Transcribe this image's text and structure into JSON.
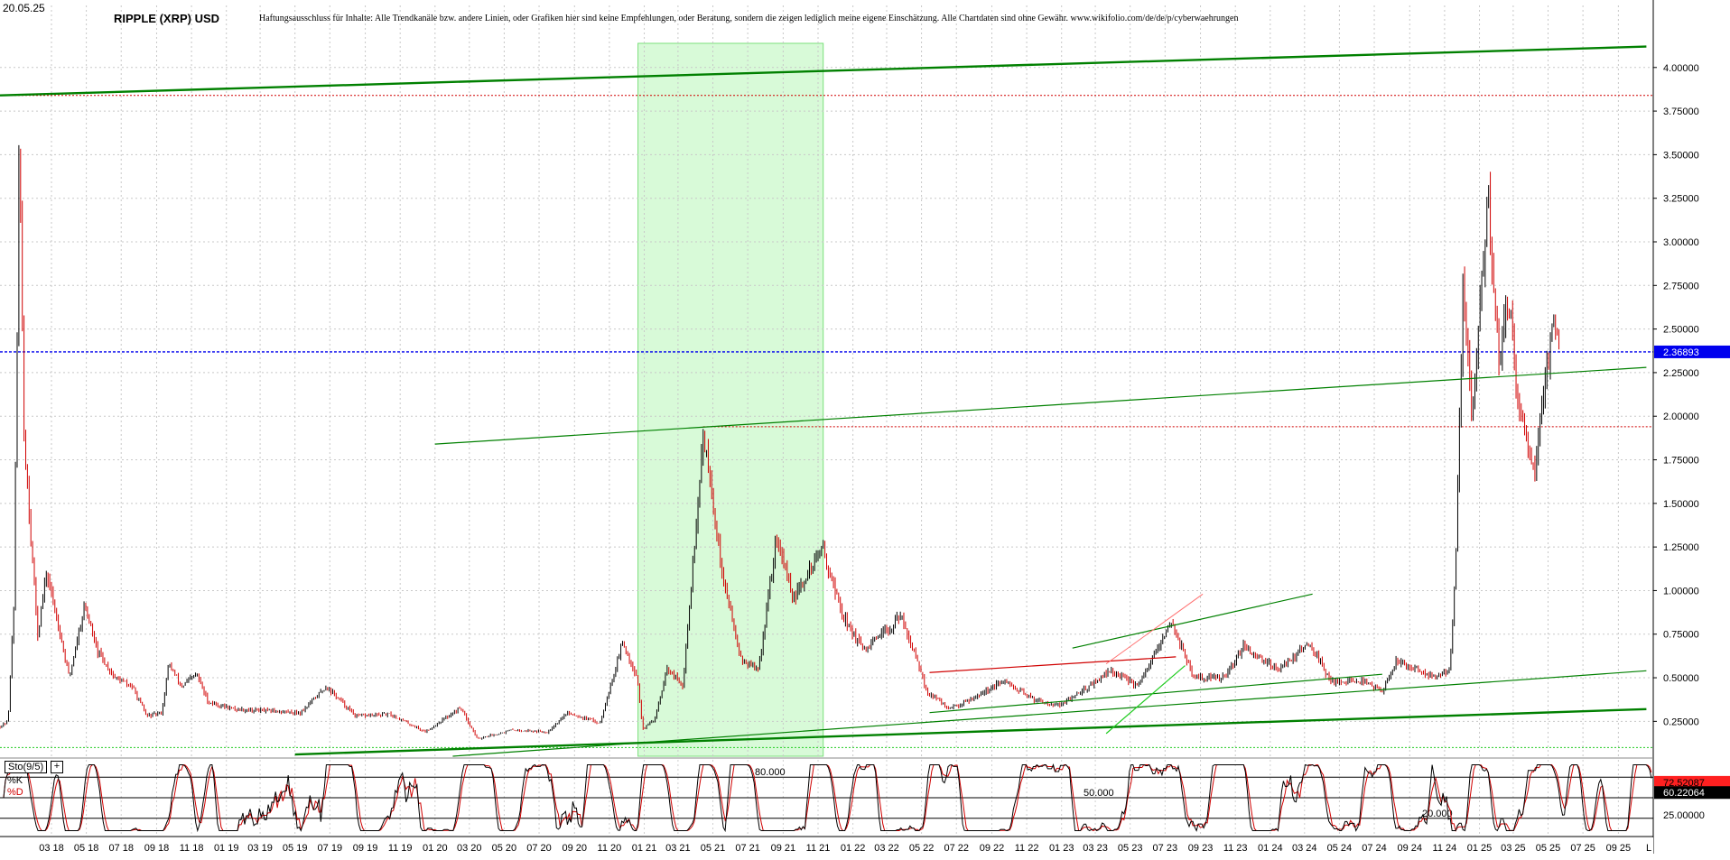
{
  "header": {
    "date": "20.05.25",
    "title": "RIPPLE (XRP) USD",
    "disclaimer": "Haftungsausschluss für Inhalte: Alle Trendkanäle bzw. andere Linien, oder Grafiken hier sind keine Empfehlungen, oder Beratung, sondern die zeigen lediglich meine eigene Einschätzung. Alle Chartdaten sind ohne Gewähr. www.wikifolio.com/de/de/p/cyberwaehrungen"
  },
  "colors": {
    "candle_up": "#000000",
    "candle_down": "#d00000",
    "trend_green": "#008000",
    "bright_green": "#22cc22",
    "highlight_zone": "#b8f5b8",
    "resistance_red": "#d00000",
    "current_price": "#0000ee",
    "stoch_k": "#000000",
    "stoch_d": "#d00000"
  },
  "chart_data": [
    {
      "type": "line",
      "subtype": "candlestick-price",
      "title": "RIPPLE (XRP) USD",
      "y_axis": {
        "side": "right",
        "range": [
          0.05,
          4.18
        ],
        "ticks": [
          "0.25000",
          "0.50000",
          "0.75000",
          "1.00000",
          "1.25000",
          "1.50000",
          "1.75000",
          "2.00000",
          "2.25000",
          "2.50000",
          "2.75000",
          "3.00000",
          "3.25000",
          "3.50000",
          "3.75000",
          "4.00000"
        ],
        "tick_values": [
          0.25,
          0.5,
          0.75,
          1.0,
          1.25,
          1.5,
          1.75,
          2.0,
          2.25,
          2.5,
          2.75,
          3.0,
          3.25,
          3.5,
          3.75,
          4.0
        ]
      },
      "x_axis": {
        "start": "2017-12",
        "end": "2025-11",
        "ticks": [
          "03 18",
          "05 18",
          "07 18",
          "09 18",
          "11 18",
          "01 19",
          "03 19",
          "05 19",
          "07 19",
          "09 19",
          "11 19",
          "01 20",
          "03 20",
          "05 20",
          "07 20",
          "09 20",
          "11 20",
          "01 21",
          "03 21",
          "05 21",
          "07 21",
          "09 21",
          "11 21",
          "01 22",
          "03 22",
          "05 22",
          "07 22",
          "09 22",
          "11 22",
          "01 23",
          "03 23",
          "05 23",
          "07 23",
          "09 23",
          "11 23",
          "01 24",
          "03 24",
          "05 24",
          "07 24",
          "09 24",
          "11 24",
          "01 25",
          "03 25",
          "05 25",
          "07 25",
          "09 25"
        ],
        "tick_dates": [
          "2018-03",
          "2018-05",
          "2018-07",
          "2018-09",
          "2018-11",
          "2019-01",
          "2019-03",
          "2019-05",
          "2019-07",
          "2019-09",
          "2019-11",
          "2020-01",
          "2020-03",
          "2020-05",
          "2020-07",
          "2020-09",
          "2020-11",
          "2021-01",
          "2021-03",
          "2021-05",
          "2021-07",
          "2021-09",
          "2021-11",
          "2022-01",
          "2022-03",
          "2022-05",
          "2022-07",
          "2022-09",
          "2022-11",
          "2023-01",
          "2023-03",
          "2023-05",
          "2023-07",
          "2023-09",
          "2023-11",
          "2024-01",
          "2024-03",
          "2024-05",
          "2024-07",
          "2024-09",
          "2024-11",
          "2025-01",
          "2025-03",
          "2025-05",
          "2025-07",
          "2025-09"
        ],
        "end_marker": "L"
      },
      "grid": true,
      "price_points": [
        {
          "date": "2017-12-01",
          "value": 0.22
        },
        {
          "date": "2017-12-15",
          "value": 0.25
        },
        {
          "date": "2017-12-25",
          "value": 0.9
        },
        {
          "date": "2018-01-04",
          "value": 3.6
        },
        {
          "date": "2018-01-12",
          "value": 1.9
        },
        {
          "date": "2018-01-22",
          "value": 1.4
        },
        {
          "date": "2018-02-05",
          "value": 0.75
        },
        {
          "date": "2018-02-20",
          "value": 1.1
        },
        {
          "date": "2018-03-10",
          "value": 0.85
        },
        {
          "date": "2018-04-01",
          "value": 0.5
        },
        {
          "date": "2018-04-28",
          "value": 0.92
        },
        {
          "date": "2018-05-20",
          "value": 0.65
        },
        {
          "date": "2018-06-20",
          "value": 0.5
        },
        {
          "date": "2018-07-20",
          "value": 0.45
        },
        {
          "date": "2018-08-15",
          "value": 0.28
        },
        {
          "date": "2018-09-10",
          "value": 0.3
        },
        {
          "date": "2018-09-22",
          "value": 0.58
        },
        {
          "date": "2018-10-15",
          "value": 0.45
        },
        {
          "date": "2018-11-10",
          "value": 0.52
        },
        {
          "date": "2018-11-30",
          "value": 0.36
        },
        {
          "date": "2019-01-15",
          "value": 0.32
        },
        {
          "date": "2019-03-15",
          "value": 0.31
        },
        {
          "date": "2019-05-10",
          "value": 0.3
        },
        {
          "date": "2019-06-25",
          "value": 0.45
        },
        {
          "date": "2019-08-15",
          "value": 0.28
        },
        {
          "date": "2019-10-15",
          "value": 0.29
        },
        {
          "date": "2019-12-15",
          "value": 0.19
        },
        {
          "date": "2020-02-15",
          "value": 0.33
        },
        {
          "date": "2020-03-15",
          "value": 0.15
        },
        {
          "date": "2020-05-15",
          "value": 0.2
        },
        {
          "date": "2020-07-15",
          "value": 0.19
        },
        {
          "date": "2020-08-20",
          "value": 0.3
        },
        {
          "date": "2020-10-15",
          "value": 0.24
        },
        {
          "date": "2020-11-24",
          "value": 0.7
        },
        {
          "date": "2020-12-20",
          "value": 0.5
        },
        {
          "date": "2020-12-29",
          "value": 0.2
        },
        {
          "date": "2021-01-20",
          "value": 0.27
        },
        {
          "date": "2021-02-10",
          "value": 0.55
        },
        {
          "date": "2021-03-10",
          "value": 0.45
        },
        {
          "date": "2021-04-14",
          "value": 1.9
        },
        {
          "date": "2021-05-01",
          "value": 1.5
        },
        {
          "date": "2021-05-20",
          "value": 1.05
        },
        {
          "date": "2021-06-20",
          "value": 0.6
        },
        {
          "date": "2021-07-20",
          "value": 0.55
        },
        {
          "date": "2021-08-20",
          "value": 1.3
        },
        {
          "date": "2021-09-20",
          "value": 0.95
        },
        {
          "date": "2021-11-08",
          "value": 1.25
        },
        {
          "date": "2021-12-15",
          "value": 0.85
        },
        {
          "date": "2022-01-20",
          "value": 0.65
        },
        {
          "date": "2022-03-28",
          "value": 0.85
        },
        {
          "date": "2022-05-10",
          "value": 0.42
        },
        {
          "date": "2022-06-20",
          "value": 0.32
        },
        {
          "date": "2022-09-23",
          "value": 0.48
        },
        {
          "date": "2022-11-10",
          "value": 0.38
        },
        {
          "date": "2022-12-30",
          "value": 0.34
        },
        {
          "date": "2023-03-28",
          "value": 0.54
        },
        {
          "date": "2023-05-15",
          "value": 0.45
        },
        {
          "date": "2023-07-13",
          "value": 0.82
        },
        {
          "date": "2023-08-20",
          "value": 0.5
        },
        {
          "date": "2023-10-15",
          "value": 0.5
        },
        {
          "date": "2023-11-15",
          "value": 0.68
        },
        {
          "date": "2024-01-15",
          "value": 0.55
        },
        {
          "date": "2024-03-11",
          "value": 0.7
        },
        {
          "date": "2024-04-15",
          "value": 0.48
        },
        {
          "date": "2024-06-15",
          "value": 0.48
        },
        {
          "date": "2024-07-15",
          "value": 0.42
        },
        {
          "date": "2024-08-10",
          "value": 0.6
        },
        {
          "date": "2024-10-15",
          "value": 0.5
        },
        {
          "date": "2024-11-10",
          "value": 0.55
        },
        {
          "date": "2024-11-20",
          "value": 1.1
        },
        {
          "date": "2024-12-03",
          "value": 2.7
        },
        {
          "date": "2024-12-20",
          "value": 2.0
        },
        {
          "date": "2025-01-16",
          "value": 3.3
        },
        {
          "date": "2025-02-03",
          "value": 2.3
        },
        {
          "date": "2025-02-20",
          "value": 2.7
        },
        {
          "date": "2025-03-10",
          "value": 2.0
        },
        {
          "date": "2025-04-07",
          "value": 1.7
        },
        {
          "date": "2025-04-25",
          "value": 2.2
        },
        {
          "date": "2025-05-12",
          "value": 2.6
        },
        {
          "date": "2025-05-20",
          "value": 2.37
        }
      ],
      "current_price_label": "2.36893",
      "current_price": 2.36893,
      "green_zone": {
        "from": "2020-12-21",
        "to": "2021-11-10"
      },
      "trendlines": [
        {
          "style": "thick-green",
          "from": {
            "date": "2017-12-01",
            "value": 3.84
          },
          "to": {
            "date": "2025-10-20",
            "value": 4.12
          }
        },
        {
          "style": "thick-green",
          "from": {
            "date": "2019-05-01",
            "value": 0.06
          },
          "to": {
            "date": "2025-10-20",
            "value": 0.32
          }
        },
        {
          "style": "green",
          "from": {
            "date": "2020-01-01",
            "value": 1.84
          },
          "to": {
            "date": "2025-10-20",
            "value": 2.28
          }
        },
        {
          "style": "green",
          "from": {
            "date": "2020-02-01",
            "value": 0.05
          },
          "to": {
            "date": "2025-10-20",
            "value": 0.54
          }
        },
        {
          "style": "green",
          "from": {
            "date": "2022-05-15",
            "value": 0.3
          },
          "to": {
            "date": "2024-07-15",
            "value": 0.52
          }
        },
        {
          "style": "green",
          "from": {
            "date": "2023-01-20",
            "value": 0.67
          },
          "to": {
            "date": "2024-03-15",
            "value": 0.98
          }
        },
        {
          "style": "bright-green",
          "from": {
            "date": "2023-03-20",
            "value": 0.18
          },
          "to": {
            "date": "2023-08-05",
            "value": 0.57
          }
        },
        {
          "style": "red",
          "from": {
            "date": "2022-05-15",
            "value": 0.53
          },
          "to": {
            "date": "2023-07-20",
            "value": 0.62
          }
        },
        {
          "style": "light-red",
          "from": {
            "date": "2023-03-20",
            "value": 0.58
          },
          "to": {
            "date": "2023-09-05",
            "value": 0.98
          }
        }
      ],
      "horizontal_lines": [
        {
          "style": "red-dotted",
          "value": 3.84
        },
        {
          "style": "red-dotted",
          "value": 1.94
        },
        {
          "style": "green-dotted",
          "value": 0.1
        }
      ]
    },
    {
      "type": "line",
      "subtype": "stochastic-oscillator",
      "indicator_label": "Sto(9/5)",
      "series": [
        {
          "name": "%K",
          "last_label": "72.52087",
          "last_value": 72.52087
        },
        {
          "name": "%D",
          "last_label": "60.22064",
          "last_value": 60.22064
        }
      ],
      "y_axis": {
        "range": [
          0,
          100
        ],
        "levels": [
          80,
          50,
          20
        ],
        "level_labels": [
          "80.000",
          "50.000",
          "20.000"
        ],
        "tick_label": "25.00000",
        "tick_value": 25
      }
    }
  ]
}
